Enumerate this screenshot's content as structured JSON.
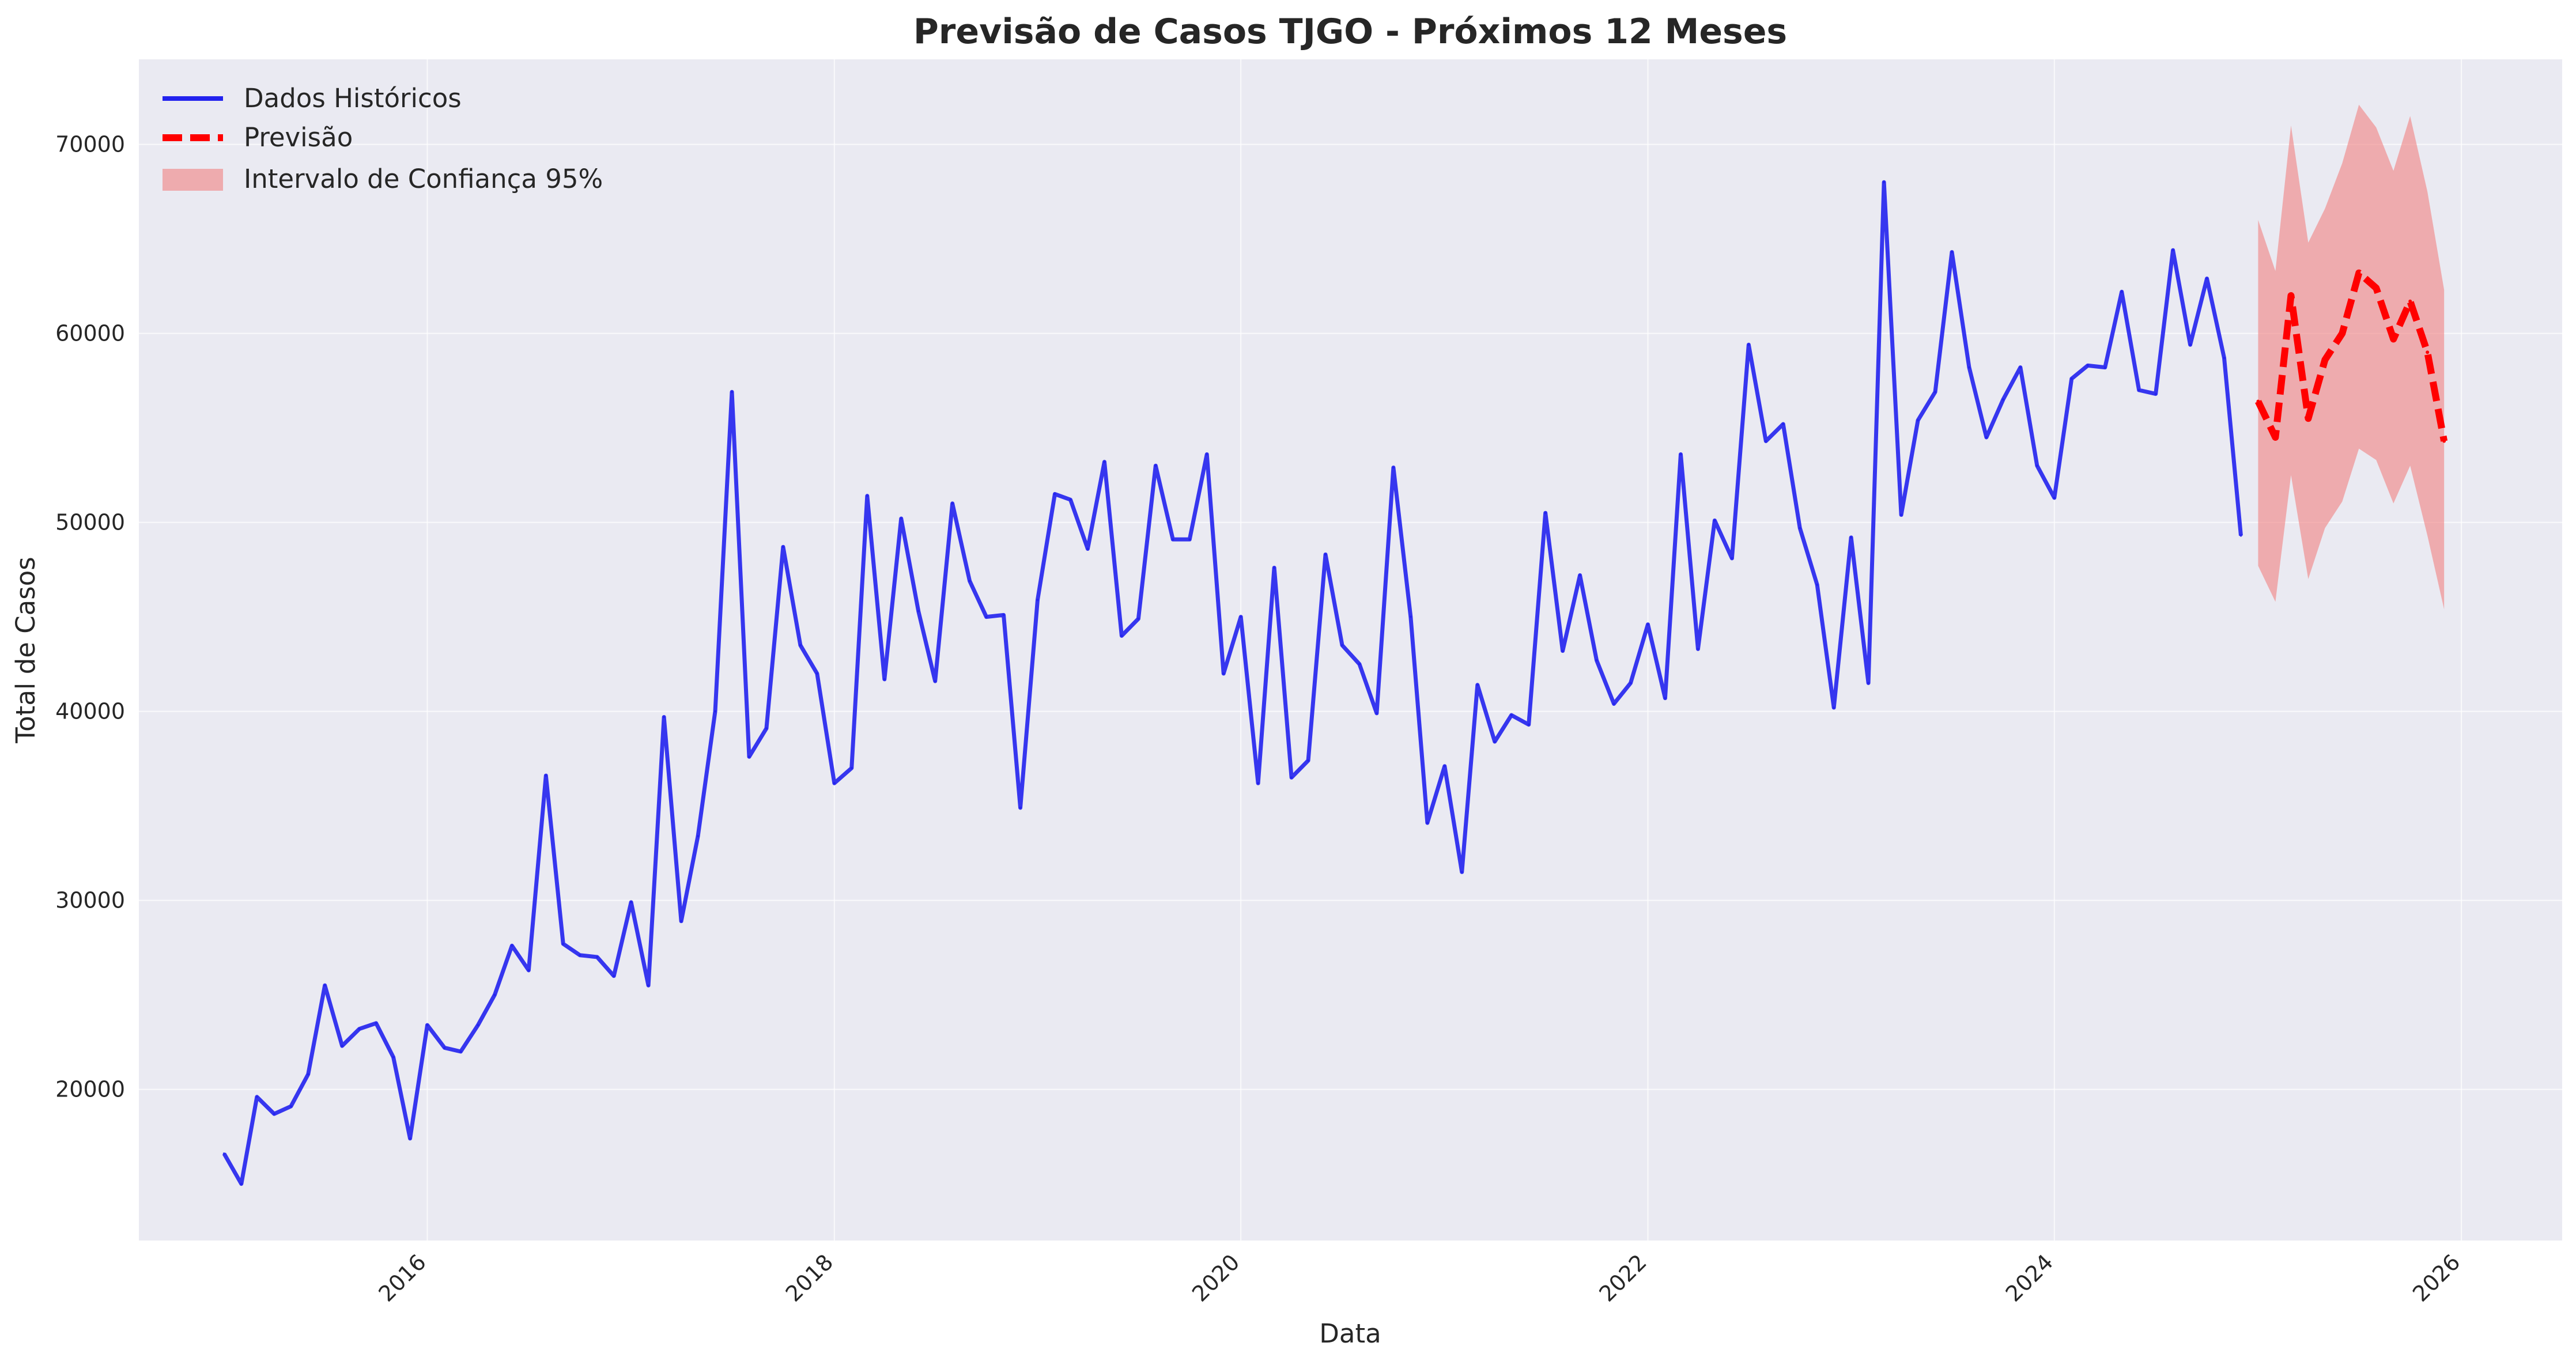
{
  "chart_data": {
    "type": "line",
    "title": "Previsão de Casos TJGO - Próximos 12 Meses",
    "xlabel": "Data",
    "ylabel": "Total de Casos",
    "xlim": [
      "2014-08-01",
      "2026-07-01"
    ],
    "ylim": [
      12000,
      74500
    ],
    "x_ticks": [
      "2016",
      "2018",
      "2020",
      "2022",
      "2024",
      "2026"
    ],
    "y_ticks": [
      20000,
      30000,
      40000,
      50000,
      60000,
      70000
    ],
    "grid": true,
    "legend_position": "top-left",
    "colors": {
      "background": "#eaeaf2",
      "historical": "#2222ee",
      "forecast": "#ff0000",
      "interval": "#f08080"
    },
    "series": [
      {
        "name": "Dados Históricos",
        "style": "solid",
        "x": [
          "2015-01",
          "2015-02",
          "2015-03",
          "2015-04",
          "2015-05",
          "2015-06",
          "2015-07",
          "2015-08",
          "2015-09",
          "2015-10",
          "2015-11",
          "2015-12",
          "2016-01",
          "2016-02",
          "2016-03",
          "2016-04",
          "2016-05",
          "2016-06",
          "2016-07",
          "2016-08",
          "2016-09",
          "2016-10",
          "2016-11",
          "2016-12",
          "2017-01",
          "2017-02",
          "2017-03",
          "2017-04",
          "2017-05",
          "2017-06",
          "2017-07",
          "2017-08",
          "2017-09",
          "2017-10",
          "2017-11",
          "2017-12",
          "2018-01",
          "2018-02",
          "2018-03",
          "2018-04",
          "2018-05",
          "2018-06",
          "2018-07",
          "2018-08",
          "2018-09",
          "2018-10",
          "2018-11",
          "2018-12",
          "2019-01",
          "2019-02",
          "2019-03",
          "2019-04",
          "2019-05",
          "2019-06",
          "2019-07",
          "2019-08",
          "2019-09",
          "2019-10",
          "2019-11",
          "2019-12",
          "2020-01",
          "2020-02",
          "2020-03",
          "2020-04",
          "2020-05",
          "2020-06",
          "2020-07",
          "2020-08",
          "2020-09",
          "2020-10",
          "2020-11",
          "2020-12",
          "2021-01",
          "2021-02",
          "2021-03",
          "2021-04",
          "2021-05",
          "2021-06",
          "2021-07",
          "2021-08",
          "2021-09",
          "2021-10",
          "2021-11",
          "2021-12",
          "2022-01",
          "2022-02",
          "2022-03",
          "2022-04",
          "2022-05",
          "2022-06",
          "2022-07",
          "2022-08",
          "2022-09",
          "2022-10",
          "2022-11",
          "2022-12",
          "2023-01",
          "2023-02",
          "2023-03",
          "2023-04",
          "2023-05",
          "2023-06",
          "2023-07",
          "2023-08",
          "2023-09",
          "2023-10",
          "2023-11",
          "2023-12",
          "2024-01",
          "2024-02",
          "2024-03",
          "2024-04",
          "2024-05",
          "2024-06",
          "2024-07",
          "2024-08",
          "2024-09",
          "2024-10",
          "2024-11",
          "2024-12"
        ],
        "values": [
          16600,
          15000,
          19600,
          18700,
          19100,
          20800,
          25500,
          22300,
          23200,
          23500,
          21700,
          17400,
          23400,
          22200,
          22000,
          23400,
          25000,
          27600,
          26300,
          36600,
          27700,
          27100,
          27000,
          26000,
          29900,
          25500,
          39700,
          28900,
          33400,
          40000,
          56900,
          37600,
          39100,
          48700,
          43500,
          42000,
          36200,
          37000,
          51400,
          41700,
          50200,
          45300,
          41600,
          51000,
          46900,
          45000,
          45100,
          34900,
          45900,
          51500,
          51200,
          48600,
          53200,
          44000,
          44900,
          53000,
          49100,
          49100,
          53600,
          42000,
          45000,
          36200,
          47600,
          36500,
          37400,
          48300,
          43500,
          42500,
          39900,
          52900,
          45000,
          34100,
          37100,
          31500,
          41400,
          38400,
          39800,
          39300,
          50500,
          43200,
          47200,
          42700,
          40400,
          41500,
          44600,
          40700,
          53600,
          43300,
          50100,
          48100,
          59400,
          54300,
          55200,
          49700,
          46700,
          40200,
          49200,
          41500,
          68000,
          50400,
          55400,
          56900,
          64300,
          58200,
          54500,
          56500,
          58200,
          53000,
          51300,
          57600,
          58300,
          58200,
          62200,
          57000,
          56800,
          64400,
          59400,
          62900,
          58700,
          49300
        ]
      },
      {
        "name": "Previsão",
        "style": "dashed",
        "x": [
          "2025-01",
          "2025-02",
          "2025-03",
          "2025-04",
          "2025-05",
          "2025-06",
          "2025-07",
          "2025-08",
          "2025-09",
          "2025-10",
          "2025-11",
          "2025-12"
        ],
        "values": [
          56400,
          54500,
          62000,
          55500,
          58600,
          60000,
          63200,
          62400,
          59700,
          61700,
          59000,
          54300
        ]
      },
      {
        "name": "Intervalo de Confiança 95%",
        "style": "band",
        "x": [
          "2025-01",
          "2025-02",
          "2025-03",
          "2025-04",
          "2025-05",
          "2025-06",
          "2025-07",
          "2025-08",
          "2025-09",
          "2025-10",
          "2025-11",
          "2025-12"
        ],
        "upper": [
          66000,
          63300,
          71000,
          64800,
          66600,
          69000,
          72100,
          70900,
          68600,
          71500,
          67500,
          62300
        ],
        "lower": [
          47700,
          45800,
          52500,
          47000,
          49700,
          51100,
          53900,
          53300,
          51000,
          53000,
          49300,
          45400
        ]
      }
    ]
  }
}
